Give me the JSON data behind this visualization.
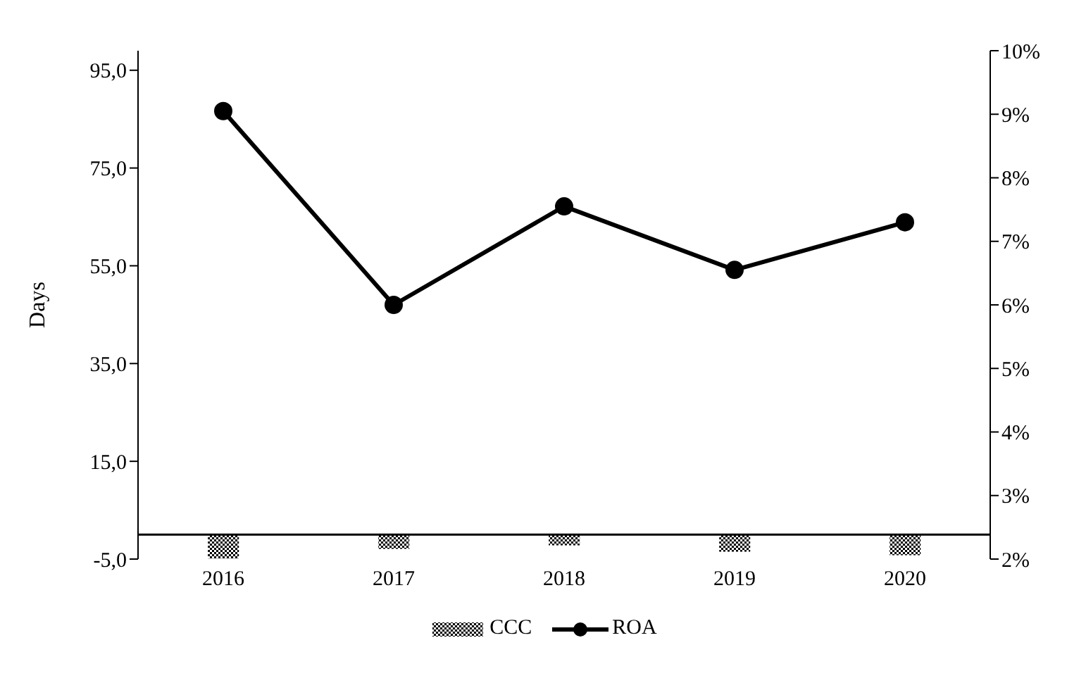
{
  "chart_data": {
    "type": "bar",
    "ylabel": "Days",
    "categories": [
      "2016",
      "2017",
      "2018",
      "2019",
      "2020"
    ],
    "series": [
      {
        "name": "CCC",
        "color": "#000000",
        "values": [
          -4.9,
          -2.9,
          -2.2,
          -3.5,
          -4.2
        ]
      },
      {
        "name": "ROA",
        "type": "line",
        "axis": "y2",
        "color": "#000000",
        "values": [
          9.05,
          6.0,
          7.55,
          6.55,
          7.3
        ]
      }
    ],
    "ylim": [
      -5,
      99
    ],
    "yticks": [
      {
        "value": -5,
        "label": "-5,0"
      },
      {
        "value": 15,
        "label": "15,0"
      },
      {
        "value": 35,
        "label": "35,0"
      },
      {
        "value": 55,
        "label": "55,0"
      },
      {
        "value": 75,
        "label": "75,0"
      },
      {
        "value": 95,
        "label": "95,0"
      }
    ],
    "y2lim": [
      2,
      10
    ],
    "y2ticks": [
      {
        "value": 2,
        "label": "2%"
      },
      {
        "value": 3,
        "label": "3%"
      },
      {
        "value": 4,
        "label": "4%"
      },
      {
        "value": 5,
        "label": "5%"
      },
      {
        "value": 6,
        "label": "6%"
      },
      {
        "value": 7,
        "label": "7%"
      },
      {
        "value": 8,
        "label": "8%"
      },
      {
        "value": 9,
        "label": "9%"
      },
      {
        "value": 10,
        "label": "10%"
      }
    ],
    "grid": false,
    "legend": "bottom",
    "marker": "circle",
    "line_style": "solid"
  }
}
